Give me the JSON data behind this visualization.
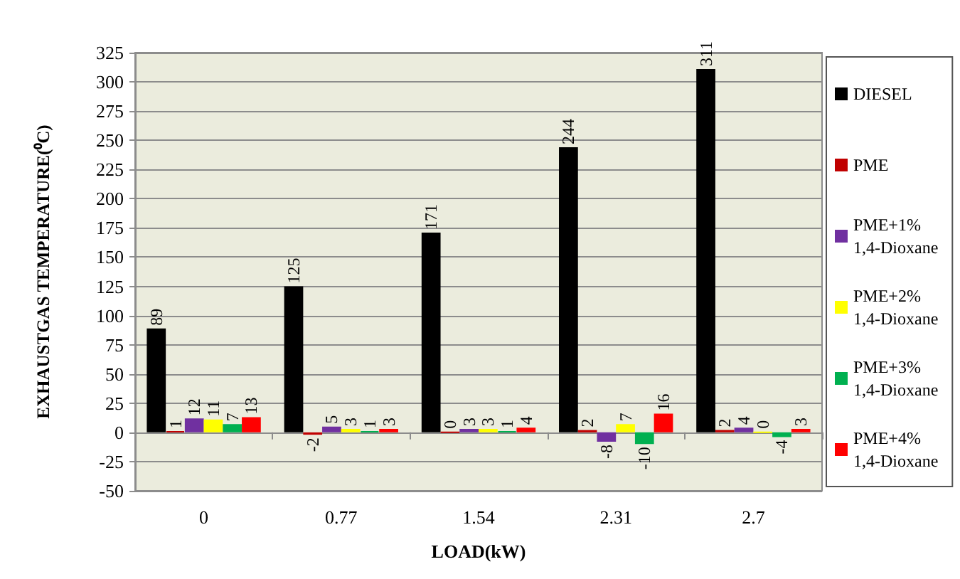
{
  "chart_data": {
    "type": "bar",
    "xlabel": "LOAD(kW)",
    "ylabel": "EXHAUSTGAS TEMPERATURE(⁰C)",
    "categories": [
      "0",
      "0.77",
      "1.54",
      "2.31",
      "2.7"
    ],
    "series": [
      {
        "name": "DIESEL",
        "color": "#000000",
        "values": [
          89,
          125,
          171,
          244,
          311
        ]
      },
      {
        "name": "PME",
        "color": "#c00000",
        "values": [
          1,
          -2,
          0,
          2,
          2
        ]
      },
      {
        "name": "PME+1% 1,4-Dioxane",
        "color": "#7030a0",
        "values": [
          12,
          5,
          3,
          -8,
          4
        ]
      },
      {
        "name": "PME+2% 1,4-Dioxane",
        "color": "#ffff00",
        "values": [
          11,
          3,
          3,
          7,
          0
        ]
      },
      {
        "name": "PME+3% 1,4-Dioxane",
        "color": "#00b050",
        "values": [
          7,
          1,
          1,
          -10,
          -4
        ]
      },
      {
        "name": "PME+4% 1,4-Dioxane",
        "color": "#ff0000",
        "values": [
          13,
          3,
          4,
          16,
          3
        ]
      }
    ],
    "ylim": [
      -50,
      325
    ],
    "yticks": [
      -50,
      -25,
      0,
      25,
      50,
      75,
      100,
      125,
      150,
      175,
      200,
      225,
      250,
      275,
      300,
      325
    ],
    "grid": "y",
    "legend": "right",
    "data_labels": true
  }
}
